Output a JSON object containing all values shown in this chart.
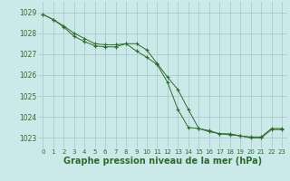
{
  "background_color": "#cce9e9",
  "grid_color": "#aacccc",
  "line_color": "#2d6b2d",
  "marker_color": "#2d6b2d",
  "xlabel": "Graphe pression niveau de la mer (hPa)",
  "xlabel_fontsize": 7,
  "ylim": [
    1022.5,
    1029.5
  ],
  "xlim": [
    -0.5,
    23.5
  ],
  "yticks": [
    1023,
    1024,
    1025,
    1026,
    1027,
    1028,
    1029
  ],
  "xticks": [
    0,
    1,
    2,
    3,
    4,
    5,
    6,
    7,
    8,
    9,
    10,
    11,
    12,
    13,
    14,
    15,
    16,
    17,
    18,
    19,
    20,
    21,
    22,
    23
  ],
  "series1_x": [
    0,
    1,
    2,
    3,
    4,
    5,
    6,
    7,
    8,
    9,
    10,
    11,
    12,
    13,
    14,
    15,
    16,
    17,
    18,
    19,
    20,
    21,
    22,
    23
  ],
  "series1_y": [
    1028.9,
    1028.65,
    1028.35,
    1028.0,
    1027.75,
    1027.5,
    1027.45,
    1027.45,
    1027.5,
    1027.5,
    1027.2,
    1026.55,
    1025.9,
    1025.3,
    1024.35,
    1023.45,
    1023.35,
    1023.2,
    1023.2,
    1023.1,
    1023.05,
    1023.05,
    1023.45,
    1023.45
  ],
  "series2_x": [
    0,
    1,
    2,
    3,
    4,
    5,
    6,
    7,
    8,
    9,
    10,
    11,
    12,
    13,
    14,
    15,
    16,
    17,
    18,
    19,
    20,
    21,
    22,
    23
  ],
  "series2_y": [
    1028.9,
    1028.65,
    1028.3,
    1027.85,
    1027.6,
    1027.4,
    1027.35,
    1027.35,
    1027.5,
    1027.15,
    1026.85,
    1026.5,
    1025.65,
    1024.35,
    1023.5,
    1023.45,
    1023.3,
    1023.2,
    1023.15,
    1023.1,
    1023.0,
    1023.0,
    1023.4,
    1023.4
  ],
  "tick_fontsize": 5.5,
  "xtick_fontsize": 5.0
}
